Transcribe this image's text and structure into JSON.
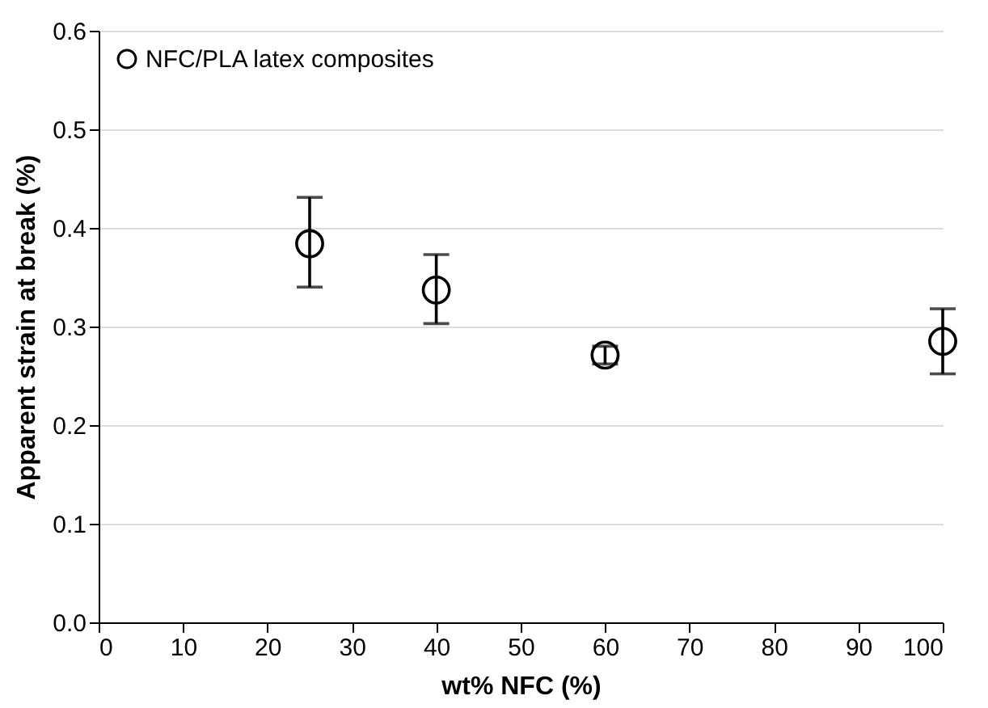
{
  "chart_data": {
    "type": "scatter",
    "xlabel": "wt% NFC (%)",
    "ylabel": "Apparent strain at break (%)",
    "x": [
      25,
      40,
      60,
      100
    ],
    "series": [
      {
        "name": "NFC/PLA latex composites",
        "color": "#000000",
        "values": [
          0.384,
          0.337,
          0.271,
          0.285
        ],
        "errors": [
          [
            0.34,
            0.431
          ],
          [
            0.303,
            0.373
          ],
          [
            0.262,
            0.28
          ],
          [
            0.252,
            0.318
          ]
        ]
      }
    ],
    "xlim": [
      0,
      100
    ],
    "xticks": [
      0,
      10,
      20,
      30,
      40,
      50,
      60,
      70,
      80,
      90,
      100
    ],
    "ylim": [
      0,
      0.6
    ],
    "yticks": [
      {
        "value": 0,
        "label": "0.0"
      },
      0.1,
      0.2,
      0.3,
      0.4,
      0.5,
      0.6
    ],
    "grid": "y",
    "legend": "top left",
    "marker": "circle"
  }
}
